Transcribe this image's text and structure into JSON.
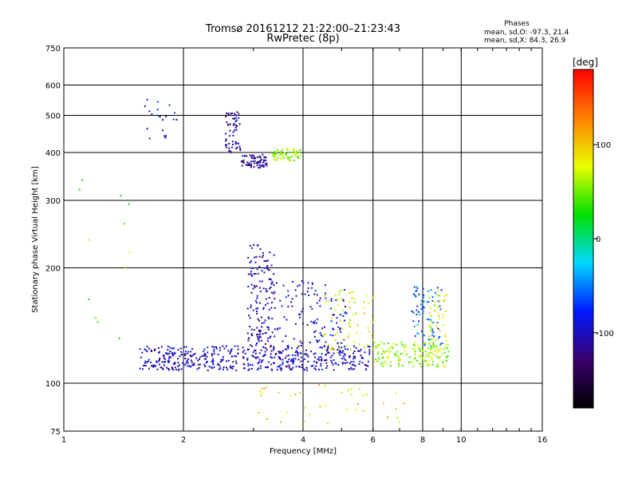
{
  "header": {
    "title_line1": "Tromsø 20161212 21:22:00–21:23:43",
    "title_line2": "RwPretec (8p)",
    "phases_title": "Phases",
    "phases_o": "mean, sd,O:  -97.3, 21.4",
    "phases_x": "mean, sd,X:  84.3, 26.9"
  },
  "chart_data": {
    "type": "scatter",
    "xlabel": "Frequency [MHz]",
    "ylabel": "Stationary phase Virtual Height [km]",
    "x_scale": "log",
    "y_scale": "log",
    "xlim": [
      1,
      16
    ],
    "ylim": [
      75,
      750
    ],
    "x_ticks": [
      1,
      2,
      4,
      6,
      8,
      10,
      16
    ],
    "x_tick_labels": [
      "1",
      "2",
      "4",
      "6",
      "8",
      "10",
      "16"
    ],
    "y_ticks": [
      75,
      100,
      200,
      300,
      400,
      500,
      600,
      750
    ],
    "y_tick_labels": [
      "75",
      "100",
      "200",
      "300",
      "400",
      "500",
      "600",
      "750"
    ],
    "grid": true,
    "colorbar": {
      "label": "[deg]",
      "range": [
        -180,
        180
      ],
      "ticks": [
        100,
        0,
        -100
      ],
      "tick_labels": [
        "100",
        "0",
        "-100"
      ],
      "colors": [
        "#000000",
        "#3a006e",
        "#0018ff",
        "#00d8ff",
        "#00e000",
        "#e8ff00",
        "#ff8000",
        "#ff0000"
      ]
    },
    "clusters": [
      {
        "name": "E-layer trace",
        "x": [
          1.55,
          5.9
        ],
        "y": [
          108,
          125
        ],
        "phase": -100,
        "count": 520
      },
      {
        "name": "E-layer trace upper",
        "x": [
          6.0,
          9.3
        ],
        "y": [
          110,
          128
        ],
        "phase": 60,
        "count": 160
      },
      {
        "name": "Es spread near 3.1 MHz",
        "x": [
          2.9,
          3.4
        ],
        "y": [
          125,
          230
        ],
        "phase": -105,
        "count": 150
      },
      {
        "name": "Spread 3.4-5.2 MHz",
        "x": [
          3.4,
          5.2
        ],
        "y": [
          125,
          185
        ],
        "phase": -95,
        "count": 110
      },
      {
        "name": "Spread 4.5-6 MHz (X)",
        "x": [
          4.5,
          6.0
        ],
        "y": [
          120,
          175
        ],
        "phase": 80,
        "count": 70
      },
      {
        "name": "Spread 7.5-9 MHz",
        "x": [
          7.5,
          9.0
        ],
        "y": [
          125,
          180
        ],
        "phase": -60,
        "count": 70
      },
      {
        "name": "Spread 8.3-9.2 MHz (X)",
        "x": [
          8.3,
          9.2
        ],
        "y": [
          120,
          175
        ],
        "phase": 75,
        "count": 50
      },
      {
        "name": "F-layer O trace rise",
        "x": [
          2.55,
          2.8
        ],
        "y": [
          400,
          510
        ],
        "phase": -110,
        "count": 60
      },
      {
        "name": "F-layer O trace",
        "x": [
          2.8,
          3.25
        ],
        "y": [
          365,
          395
        ],
        "phase": -115,
        "count": 70
      },
      {
        "name": "F-layer X trace",
        "x": [
          3.35,
          3.95
        ],
        "y": [
          380,
          410
        ],
        "phase": 60,
        "count": 60
      },
      {
        "name": "Upper echoes 1.6-1.9 MHz",
        "x": [
          1.6,
          1.95
        ],
        "y": [
          430,
          550
        ],
        "phase": -95,
        "count": 20
      },
      {
        "name": "Lower scatter",
        "x": [
          3.0,
          7.5
        ],
        "y": [
          78,
          100
        ],
        "phase": 90,
        "count": 40
      },
      {
        "name": "Low frequency scatter",
        "x": [
          1.05,
          1.6
        ],
        "y": [
          130,
          340
        ],
        "phase": 40,
        "count": 12
      }
    ]
  }
}
